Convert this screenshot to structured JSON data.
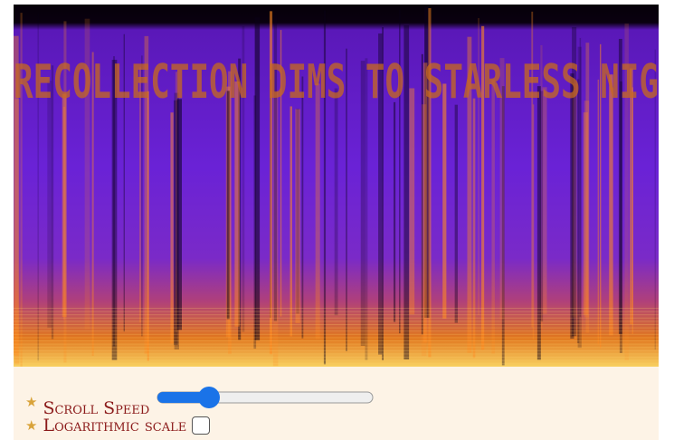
{
  "spectrogram": {
    "hidden_text": "RECOLLECTION DIMS TO STARLESS NIG"
  },
  "controls": {
    "scroll_speed": "Scroll Speed",
    "log_scale": "Logarithmic scale"
  }
}
